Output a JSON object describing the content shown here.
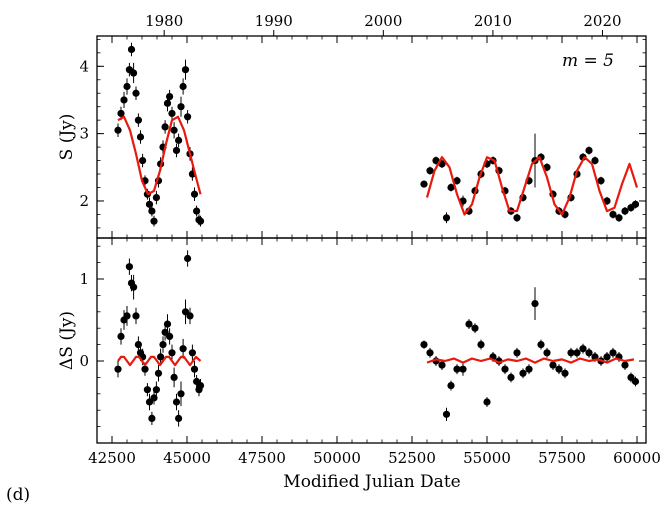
{
  "figure": {
    "panel_label": "(d)",
    "xlabel": "Modified Julian Date",
    "annotation": "m = 5"
  },
  "chart_data": [
    {
      "type": "scatter",
      "panel": "top",
      "ylabel": "S (Jy)",
      "xlim": [
        42000,
        60300
      ],
      "ylim": [
        1.45,
        4.45
      ],
      "x_ticks": [
        42500,
        45000,
        47500,
        50000,
        52500,
        55000,
        57500,
        60000
      ],
      "y_ticks": [
        2,
        3,
        4
      ],
      "top_axis_ticks": [
        "1980",
        "1990",
        "2000",
        "2010",
        "2020"
      ],
      "top_axis_mjd": [
        44239,
        47892,
        51544,
        55197,
        58849
      ],
      "series": [
        {
          "kind": "points",
          "x": [
            42700,
            42800,
            42900,
            43000,
            43080,
            43150,
            43220,
            43300,
            43380,
            43450,
            43520,
            43600,
            43680,
            43750,
            43830,
            43900,
            43980,
            44050,
            44120,
            44200,
            44270,
            44350,
            44420,
            44500,
            44570,
            44650,
            44720,
            44800,
            44870,
            44950,
            45020,
            45100,
            45180,
            45250,
            45320,
            45400,
            45450,
            52900,
            53100,
            53300,
            53500,
            53650,
            53800,
            54000,
            54200,
            54400,
            54600,
            54800,
            55000,
            55200,
            55400,
            55600,
            55800,
            56000,
            56200,
            56400,
            56600,
            56800,
            57000,
            57200,
            57400,
            57600,
            57800,
            58000,
            58200,
            58400,
            58600,
            58800,
            59000,
            59200,
            59400,
            59600,
            59800,
            59950
          ],
          "y": [
            3.05,
            3.3,
            3.5,
            3.7,
            3.95,
            4.25,
            3.9,
            3.6,
            3.2,
            2.95,
            2.6,
            2.3,
            2.1,
            1.95,
            1.85,
            1.7,
            2.05,
            2.3,
            2.55,
            2.8,
            3.1,
            3.45,
            3.55,
            3.3,
            3.05,
            2.75,
            2.9,
            3.4,
            3.7,
            3.95,
            3.25,
            2.7,
            2.4,
            2.1,
            1.85,
            1.72,
            1.7,
            2.25,
            2.45,
            2.6,
            2.55,
            1.75,
            2.2,
            2.3,
            2.0,
            1.85,
            2.15,
            2.4,
            2.55,
            2.6,
            2.45,
            2.15,
            1.85,
            1.75,
            2.05,
            2.3,
            2.6,
            2.65,
            2.5,
            2.1,
            1.85,
            1.8,
            2.05,
            2.4,
            2.65,
            2.75,
            2.6,
            2.3,
            2.0,
            1.8,
            1.75,
            1.85,
            1.9,
            1.95
          ],
          "err": [
            0.1,
            0.1,
            0.12,
            0.12,
            0.1,
            0.1,
            0.15,
            0.1,
            0.1,
            0.1,
            0.1,
            0.08,
            0.08,
            0.1,
            0.08,
            0.08,
            0.1,
            0.1,
            0.1,
            0.1,
            0.1,
            0.12,
            0.1,
            0.1,
            0.12,
            0.1,
            0.1,
            0.15,
            0.12,
            0.15,
            0.1,
            0.1,
            0.1,
            0.1,
            0.08,
            0.08,
            0.08,
            0.05,
            0.06,
            0.06,
            0.06,
            0.08,
            0.06,
            0.06,
            0.08,
            0.06,
            0.06,
            0.06,
            0.06,
            0.06,
            0.06,
            0.06,
            0.06,
            0.06,
            0.06,
            0.06,
            0.4,
            0.06,
            0.06,
            0.06,
            0.06,
            0.06,
            0.06,
            0.06,
            0.06,
            0.06,
            0.06,
            0.06,
            0.06,
            0.06,
            0.06,
            0.06,
            0.06,
            0.06
          ],
          "color": "#000000"
        },
        {
          "kind": "line",
          "x": [
            42700,
            42900,
            43100,
            43300,
            43500,
            43700,
            43900,
            44100,
            44300,
            44500,
            44700,
            44900,
            45100,
            45300,
            45450,
            53000,
            53250,
            53500,
            53750,
            54000,
            54250,
            54500,
            54750,
            55000,
            55250,
            55500,
            55750,
            56000,
            56250,
            56500,
            56750,
            57000,
            57250,
            57500,
            57750,
            58000,
            58250,
            58500,
            58750,
            59000,
            59250,
            59500,
            59750,
            60000
          ],
          "y": [
            3.2,
            3.25,
            3.05,
            2.7,
            2.3,
            2.1,
            2.15,
            2.45,
            2.85,
            3.2,
            3.25,
            3.05,
            2.7,
            2.35,
            2.1,
            2.05,
            2.45,
            2.65,
            2.5,
            2.1,
            1.8,
            1.95,
            2.35,
            2.65,
            2.6,
            2.2,
            1.85,
            1.85,
            2.2,
            2.55,
            2.65,
            2.35,
            1.95,
            1.8,
            2.05,
            2.45,
            2.65,
            2.55,
            2.15,
            1.85,
            1.9,
            2.25,
            2.55,
            2.2
          ],
          "color": "#e8190d"
        }
      ]
    },
    {
      "type": "scatter",
      "panel": "bottom",
      "ylabel": "ΔS (Jy)",
      "xlim": [
        42000,
        60300
      ],
      "ylim": [
        -1.0,
        1.5
      ],
      "x_ticks": [
        42500,
        45000,
        47500,
        50000,
        52500,
        55000,
        57500,
        60000
      ],
      "y_ticks": [
        0,
        1
      ],
      "series": [
        {
          "kind": "points",
          "x": [
            42700,
            42800,
            42900,
            43000,
            43080,
            43150,
            43220,
            43300,
            43380,
            43450,
            43520,
            43600,
            43680,
            43750,
            43830,
            43900,
            43980,
            44050,
            44120,
            44200,
            44270,
            44350,
            44420,
            44500,
            44570,
            44650,
            44720,
            44800,
            44870,
            44950,
            45020,
            45100,
            45180,
            45250,
            45320,
            45400,
            45450,
            52900,
            53100,
            53300,
            53500,
            53650,
            53800,
            54000,
            54200,
            54400,
            54600,
            54800,
            55000,
            55200,
            55400,
            55600,
            55800,
            56000,
            56200,
            56400,
            56600,
            56800,
            57000,
            57200,
            57400,
            57600,
            57800,
            58000,
            58200,
            58400,
            58600,
            58800,
            59000,
            59200,
            59400,
            59600,
            59800,
            59950
          ],
          "y": [
            -0.1,
            0.3,
            0.5,
            0.55,
            1.15,
            0.95,
            0.9,
            0.55,
            0.2,
            0.1,
            0.05,
            -0.1,
            -0.35,
            -0.5,
            -0.7,
            -0.45,
            -0.35,
            -0.15,
            0.05,
            0.2,
            0.35,
            0.45,
            0.3,
            0.1,
            -0.2,
            -0.5,
            -0.7,
            -0.4,
            0.15,
            0.6,
            1.25,
            0.55,
            0.1,
            -0.1,
            -0.25,
            -0.35,
            -0.3,
            0.2,
            0.1,
            0.0,
            -0.05,
            -0.65,
            -0.3,
            -0.1,
            -0.1,
            0.45,
            0.4,
            0.2,
            -0.5,
            0.05,
            0.0,
            -0.1,
            -0.2,
            0.1,
            -0.15,
            -0.1,
            0.7,
            0.2,
            0.1,
            -0.05,
            -0.1,
            -0.15,
            0.1,
            0.1,
            0.15,
            0.1,
            0.05,
            0.0,
            0.05,
            0.1,
            0.05,
            -0.05,
            -0.2,
            -0.25
          ],
          "err": [
            0.1,
            0.1,
            0.12,
            0.12,
            0.1,
            0.1,
            0.15,
            0.1,
            0.1,
            0.1,
            0.1,
            0.08,
            0.08,
            0.1,
            0.08,
            0.08,
            0.1,
            0.1,
            0.1,
            0.1,
            0.1,
            0.12,
            0.1,
            0.1,
            0.12,
            0.1,
            0.1,
            0.15,
            0.12,
            0.15,
            0.1,
            0.1,
            0.1,
            0.1,
            0.08,
            0.08,
            0.08,
            0.05,
            0.06,
            0.06,
            0.06,
            0.08,
            0.06,
            0.06,
            0.08,
            0.06,
            0.06,
            0.06,
            0.06,
            0.06,
            0.06,
            0.06,
            0.06,
            0.06,
            0.06,
            0.06,
            0.2,
            0.06,
            0.06,
            0.06,
            0.06,
            0.06,
            0.06,
            0.06,
            0.06,
            0.06,
            0.06,
            0.06,
            0.06,
            0.06,
            0.06,
            0.06,
            0.06,
            0.06
          ],
          "color": "#000000"
        },
        {
          "kind": "line",
          "x": [
            42700,
            42800,
            42900,
            43000,
            43100,
            43200,
            43300,
            43400,
            43500,
            43600,
            43700,
            43800,
            43900,
            44000,
            44100,
            44200,
            44300,
            44400,
            44500,
            44600,
            44700,
            44800,
            44900,
            45000,
            45100,
            45200,
            45300,
            45450,
            53000,
            53300,
            53600,
            53900,
            54200,
            54500,
            54800,
            55100,
            55400,
            55700,
            56000,
            56300,
            56600,
            56900,
            57200,
            57500,
            57800,
            58100,
            58400,
            58700,
            59000,
            59300,
            59600,
            59900
          ],
          "y": [
            0.0,
            0.05,
            0.05,
            0.0,
            -0.05,
            0.0,
            0.05,
            0.05,
            0.0,
            -0.05,
            0.0,
            0.05,
            0.05,
            0.0,
            -0.05,
            0.0,
            0.05,
            0.05,
            0.0,
            -0.05,
            0.0,
            0.05,
            0.05,
            0.0,
            -0.05,
            0.0,
            0.05,
            0.0,
            -0.02,
            0.02,
            0.0,
            0.03,
            -0.02,
            0.03,
            0.0,
            0.03,
            -0.02,
            0.02,
            0.0,
            0.03,
            -0.02,
            0.03,
            0.0,
            0.02,
            -0.02,
            0.03,
            0.0,
            0.02,
            -0.02,
            0.03,
            0.0,
            0.02
          ],
          "color": "#e8190d"
        }
      ]
    }
  ]
}
